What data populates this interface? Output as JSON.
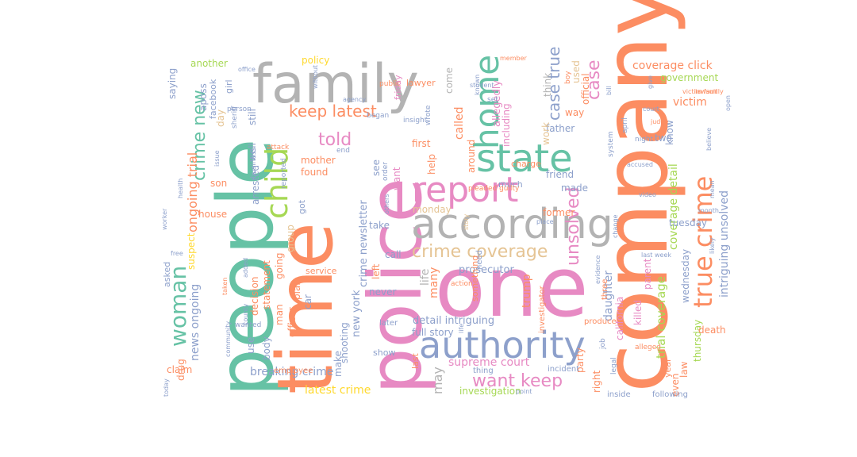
{
  "palette": {
    "green": "#66c2a5",
    "orange": "#fc8d62",
    "blue": "#8da0cb",
    "pink": "#e78ac3",
    "lime": "#a6d854",
    "yellow": "#ffd92f",
    "tan": "#e5c494",
    "gray": "#b3b3b3"
  },
  "words": [
    {
      "text": "company",
      "color": "orange",
      "rot": -90
    },
    {
      "text": "people",
      "color": "green",
      "rot": -90
    },
    {
      "text": "time",
      "color": "orange",
      "rot": -90
    },
    {
      "text": "police",
      "color": "pink",
      "rot": -90
    },
    {
      "text": "one",
      "color": "pink",
      "rot": 0
    },
    {
      "text": "family",
      "color": "gray",
      "rot": 0
    },
    {
      "text": "according",
      "color": "gray",
      "rot": 0
    },
    {
      "text": "authority",
      "color": "blue",
      "rot": 0
    },
    {
      "text": "report",
      "color": "pink",
      "rot": 0
    },
    {
      "text": "state",
      "color": "green",
      "rot": 0
    },
    {
      "text": "child",
      "color": "lime",
      "rot": -90
    },
    {
      "text": "home",
      "color": "green",
      "rot": -90
    },
    {
      "text": "true crime",
      "color": "orange",
      "rot": -90
    },
    {
      "text": "woman",
      "color": "green",
      "rot": -90
    },
    {
      "text": "crime new",
      "color": "green",
      "rot": -90
    },
    {
      "text": "keep latest",
      "color": "orange",
      "rot": 0
    },
    {
      "text": "want keep",
      "color": "pink",
      "rot": 0
    },
    {
      "text": "crime coverage",
      "color": "tan",
      "rot": 0
    },
    {
      "text": "unsolved",
      "color": "pink",
      "rot": -90
    },
    {
      "text": "case",
      "color": "pink",
      "rot": -90
    },
    {
      "text": "told",
      "color": "pink",
      "rot": 0
    },
    {
      "text": "case true",
      "color": "blue",
      "rot": -90
    },
    {
      "text": "trial coverage",
      "color": "lime",
      "rot": -90
    },
    {
      "text": "coverage detail",
      "color": "lime",
      "rot": -90
    },
    {
      "text": "intriguing unsolved",
      "color": "blue",
      "rot": -90
    },
    {
      "text": "coverage click",
      "color": "orange",
      "rot": 0
    },
    {
      "text": "victim",
      "color": "orange",
      "rot": 0
    },
    {
      "text": "government",
      "color": "lime",
      "rot": 0
    },
    {
      "text": "supreme court",
      "color": "pink",
      "rot": 0
    },
    {
      "text": "latest crime",
      "color": "yellow",
      "rot": 0
    },
    {
      "text": "breaking crime",
      "color": "blue",
      "rot": 0
    },
    {
      "text": "detail intriguing",
      "color": "blue",
      "rot": 0
    },
    {
      "text": "full story",
      "color": "blue",
      "rot": 0
    },
    {
      "text": "investigation",
      "color": "lime",
      "rot": 0
    },
    {
      "text": "ongoing trial",
      "color": "orange",
      "rot": -90
    },
    {
      "text": "news ongoing",
      "color": "blue",
      "rot": -90
    },
    {
      "text": "crime newsletter",
      "color": "blue",
      "rot": -90
    },
    {
      "text": "new york",
      "color": "blue",
      "rot": -90
    },
    {
      "text": "may",
      "color": "gray",
      "rot": -90
    },
    {
      "text": "life",
      "color": "gray",
      "rot": -90
    },
    {
      "text": "many",
      "color": "orange",
      "rot": -90
    },
    {
      "text": "daughter",
      "color": "blue",
      "rot": -90
    },
    {
      "text": "prosecutor",
      "color": "blue",
      "rot": 0
    },
    {
      "text": "monday",
      "color": "tan",
      "rot": 0
    },
    {
      "text": "former",
      "color": "orange",
      "rot": 0
    },
    {
      "text": "made",
      "color": "blue",
      "rot": 0
    },
    {
      "text": "friend",
      "color": "blue",
      "rot": 0
    },
    {
      "text": "father",
      "color": "blue",
      "rot": 0
    },
    {
      "text": "tuesday",
      "color": "blue",
      "rot": 0
    },
    {
      "text": "wednesday",
      "color": "blue",
      "rot": -90
    },
    {
      "text": "thursday",
      "color": "lime",
      "rot": -90
    },
    {
      "text": "friday",
      "color": "pink",
      "rot": -90
    },
    {
      "text": "california",
      "color": "pink",
      "rot": -90
    },
    {
      "text": "trump",
      "color": "orange",
      "rot": -90
    },
    {
      "text": "mother",
      "color": "orange",
      "rot": 0
    },
    {
      "text": "found",
      "color": "orange",
      "rot": 0
    },
    {
      "text": "first",
      "color": "orange",
      "rot": 0
    },
    {
      "text": "called",
      "color": "orange",
      "rot": -90
    },
    {
      "text": "allegedly",
      "color": "pink",
      "rot": -90
    },
    {
      "text": "including",
      "color": "pink",
      "rot": -90
    },
    {
      "text": "work",
      "color": "tan",
      "rot": -90
    },
    {
      "text": "think",
      "color": "gray",
      "rot": -90
    },
    {
      "text": "way",
      "color": "orange",
      "rot": 0
    },
    {
      "text": "official",
      "color": "orange",
      "rot": -90
    },
    {
      "text": "used",
      "color": "tan",
      "rot": -90
    },
    {
      "text": "two",
      "color": "blue",
      "rot": 0
    },
    {
      "text": "know",
      "color": "blue",
      "rot": -90
    },
    {
      "text": "death",
      "color": "orange",
      "rot": 0
    },
    {
      "text": "law",
      "color": "orange",
      "rot": -90
    },
    {
      "text": "year",
      "color": "orange",
      "rot": -90
    },
    {
      "text": "killed",
      "color": "pink",
      "rot": -90
    },
    {
      "text": "parent",
      "color": "pink",
      "rot": -90
    },
    {
      "text": "even",
      "color": "orange",
      "rot": -90
    },
    {
      "text": "right",
      "color": "orange",
      "rot": -90
    },
    {
      "text": "party",
      "color": "orange",
      "rot": -90
    },
    {
      "text": "another",
      "color": "lime",
      "rot": 0
    },
    {
      "text": "saying",
      "color": "blue",
      "rot": -90
    },
    {
      "text": "aposs",
      "color": "blue",
      "rot": -90
    },
    {
      "text": "facebook",
      "color": "blue",
      "rot": -90
    },
    {
      "text": "day",
      "color": "tan",
      "rot": -90
    },
    {
      "text": "girl",
      "color": "blue",
      "rot": -90
    },
    {
      "text": "son",
      "color": "orange",
      "rot": 0
    },
    {
      "text": "suspect",
      "color": "yellow",
      "rot": -90
    },
    {
      "text": "drug",
      "color": "orange",
      "rot": -90
    },
    {
      "text": "claim",
      "color": "orange",
      "rot": 0
    },
    {
      "text": "asked",
      "color": "blue",
      "rot": -90
    },
    {
      "text": "house",
      "color": "orange",
      "rot": 0
    },
    {
      "text": "going",
      "color": "orange",
      "rot": -90
    },
    {
      "text": "group",
      "color": "tan",
      "rot": -90
    },
    {
      "text": "statement",
      "color": "orange",
      "rot": -90
    },
    {
      "text": "decision",
      "color": "orange",
      "rot": -90
    },
    {
      "text": "man",
      "color": "orange",
      "rot": -90
    },
    {
      "text": "officer",
      "color": "orange",
      "rot": -90
    },
    {
      "text": "body",
      "color": "blue",
      "rot": -90
    },
    {
      "text": "use",
      "color": "blue",
      "rot": -90
    },
    {
      "text": "car",
      "color": "blue",
      "rot": -90
    },
    {
      "text": "plan",
      "color": "orange",
      "rot": -90
    },
    {
      "text": "service",
      "color": "orange",
      "rot": 0
    },
    {
      "text": "shooting",
      "color": "blue",
      "rot": -90
    },
    {
      "text": "make",
      "color": "blue",
      "rot": -90
    },
    {
      "text": "never",
      "color": "blue",
      "rot": 0
    },
    {
      "text": "show",
      "color": "blue",
      "rot": 0
    },
    {
      "text": "left",
      "color": "orange",
      "rot": -90
    },
    {
      "text": "call",
      "color": "blue",
      "rot": 0
    },
    {
      "text": "take",
      "color": "blue",
      "rot": 0
    },
    {
      "text": "help",
      "color": "orange",
      "rot": -90
    },
    {
      "text": "around",
      "color": "orange",
      "rot": -90
    },
    {
      "text": "much",
      "color": "blue",
      "rot": 0
    },
    {
      "text": "lawyer",
      "color": "orange",
      "rot": 0
    },
    {
      "text": "policy",
      "color": "yellow",
      "rot": 0
    },
    {
      "text": "arrested",
      "color": "blue",
      "rot": -90
    },
    {
      "text": "still",
      "color": "blue",
      "rot": -90
    },
    {
      "text": "well",
      "color": "blue",
      "rot": -90
    },
    {
      "text": "come",
      "color": "gray",
      "rot": -90
    },
    {
      "text": "got",
      "color": "blue",
      "rot": 0
    },
    {
      "text": "see",
      "color": "blue",
      "rot": 0
    },
    {
      "text": "want",
      "color": "pink",
      "rot": 0
    },
    {
      "text": "last",
      "color": "orange",
      "rot": 0
    },
    {
      "text": "charge",
      "color": "orange",
      "rot": 0
    },
    {
      "text": "employee",
      "color": "orange",
      "rot": 0
    },
    {
      "text": "something",
      "color": "orange",
      "rot": -90
    },
    {
      "text": "three",
      "color": "orange",
      "rot": -90
    },
    {
      "text": "produce",
      "color": "orange",
      "rot": 0
    },
    {
      "text": "investigator",
      "color": "orange",
      "rot": -90
    },
    {
      "text": "thing",
      "color": "blue",
      "rot": 0
    },
    {
      "text": "incident",
      "color": "blue",
      "rot": 0
    },
    {
      "text": "inside",
      "color": "blue",
      "rot": 0
    },
    {
      "text": "following",
      "color": "blue",
      "rot": 0
    },
    {
      "text": "later",
      "color": "blue",
      "rot": 0
    },
    {
      "text": "alleged",
      "color": "orange",
      "rot": 0
    },
    {
      "text": "need",
      "color": "blue",
      "rot": -90
    },
    {
      "text": "action",
      "color": "orange",
      "rot": 0
    },
    {
      "text": "system",
      "color": "blue",
      "rot": -90
    },
    {
      "text": "night",
      "color": "blue",
      "rot": 0
    },
    {
      "text": "wanted",
      "color": "blue",
      "rot": 0
    },
    {
      "text": "reported",
      "color": "blue",
      "rot": -90
    },
    {
      "text": "began",
      "color": "blue",
      "rot": 0
    },
    {
      "text": "public",
      "color": "orange",
      "rot": 0
    },
    {
      "text": "member",
      "color": "orange",
      "rot": 0
    },
    {
      "text": "insight",
      "color": "blue",
      "rot": 0
    },
    {
      "text": "business",
      "color": "blue",
      "rot": -90
    },
    {
      "text": "sheriff",
      "color": "blue",
      "rot": -90
    },
    {
      "text": "person",
      "color": "blue",
      "rot": 0
    },
    {
      "text": "attack",
      "color": "orange",
      "rot": 0
    },
    {
      "text": "pleaded guilty",
      "color": "orange",
      "rot": 0
    },
    {
      "text": "last week",
      "color": "blue",
      "rot": 0
    },
    {
      "text": "lawsuit",
      "color": "orange",
      "rot": 0
    },
    {
      "text": "wrote",
      "color": "blue",
      "rot": -90
    },
    {
      "text": "set",
      "color": "blue",
      "rot": 0
    },
    {
      "text": "point",
      "color": "blue",
      "rot": 0
    },
    {
      "text": "job",
      "color": "blue",
      "rot": -90
    },
    {
      "text": "legal",
      "color": "blue",
      "rot": -90
    },
    {
      "text": "accused",
      "color": "blue",
      "rot": 0
    },
    {
      "text": "court",
      "color": "blue",
      "rot": 0
    },
    {
      "text": "judge",
      "color": "orange",
      "rot": 0
    },
    {
      "text": "video",
      "color": "blue",
      "rot": 0
    },
    {
      "text": "april",
      "color": "blue",
      "rot": -90
    },
    {
      "text": "boy",
      "color": "orange",
      "rot": -90
    },
    {
      "text": "give",
      "color": "blue",
      "rot": -90
    },
    {
      "text": "evidence",
      "color": "blue",
      "rot": -90
    },
    {
      "text": "today",
      "color": "blue",
      "rot": -90
    },
    {
      "text": "order",
      "color": "blue",
      "rot": -90
    },
    {
      "text": "others",
      "color": "blue",
      "rot": -90
    },
    {
      "text": "added",
      "color": "blue",
      "rot": -90
    },
    {
      "text": "taken",
      "color": "orange",
      "rot": -90
    },
    {
      "text": "story",
      "color": "tan",
      "rot": -90
    },
    {
      "text": "end",
      "color": "blue",
      "rot": 0
    },
    {
      "text": "without",
      "color": "blue",
      "rot": -90
    },
    {
      "text": "worker",
      "color": "blue",
      "rot": -90
    },
    {
      "text": "issue",
      "color": "blue",
      "rot": -90
    },
    {
      "text": "free",
      "color": "blue",
      "rot": 0
    },
    {
      "text": "open",
      "color": "blue",
      "rot": -90
    },
    {
      "text": "bill",
      "color": "blue",
      "rot": -90
    },
    {
      "text": "mean",
      "color": "blue",
      "rot": -90
    },
    {
      "text": "office",
      "color": "blue",
      "rot": 0
    },
    {
      "text": "place",
      "color": "blue",
      "rot": 0
    },
    {
      "text": "student",
      "color": "blue",
      "rot": 0
    },
    {
      "text": "community",
      "color": "blue",
      "rot": -90
    },
    {
      "text": "victim family",
      "color": "orange",
      "rot": 0
    },
    {
      "text": "believe",
      "color": "blue",
      "rot": -90
    },
    {
      "text": "likely",
      "color": "blue",
      "rot": -90
    },
    {
      "text": "month",
      "color": "blue",
      "rot": 0
    },
    {
      "text": "agency",
      "color": "blue",
      "rot": 0
    },
    {
      "text": "county",
      "color": "blue",
      "rot": -90
    },
    {
      "text": "health",
      "color": "blue",
      "rot": -90
    },
    {
      "text": "change",
      "color": "blue",
      "rot": -90
    },
    {
      "text": "known",
      "color": "blue",
      "rot": -90
    },
    {
      "text": "life",
      "color": "blue",
      "rot": -90
    }
  ]
}
